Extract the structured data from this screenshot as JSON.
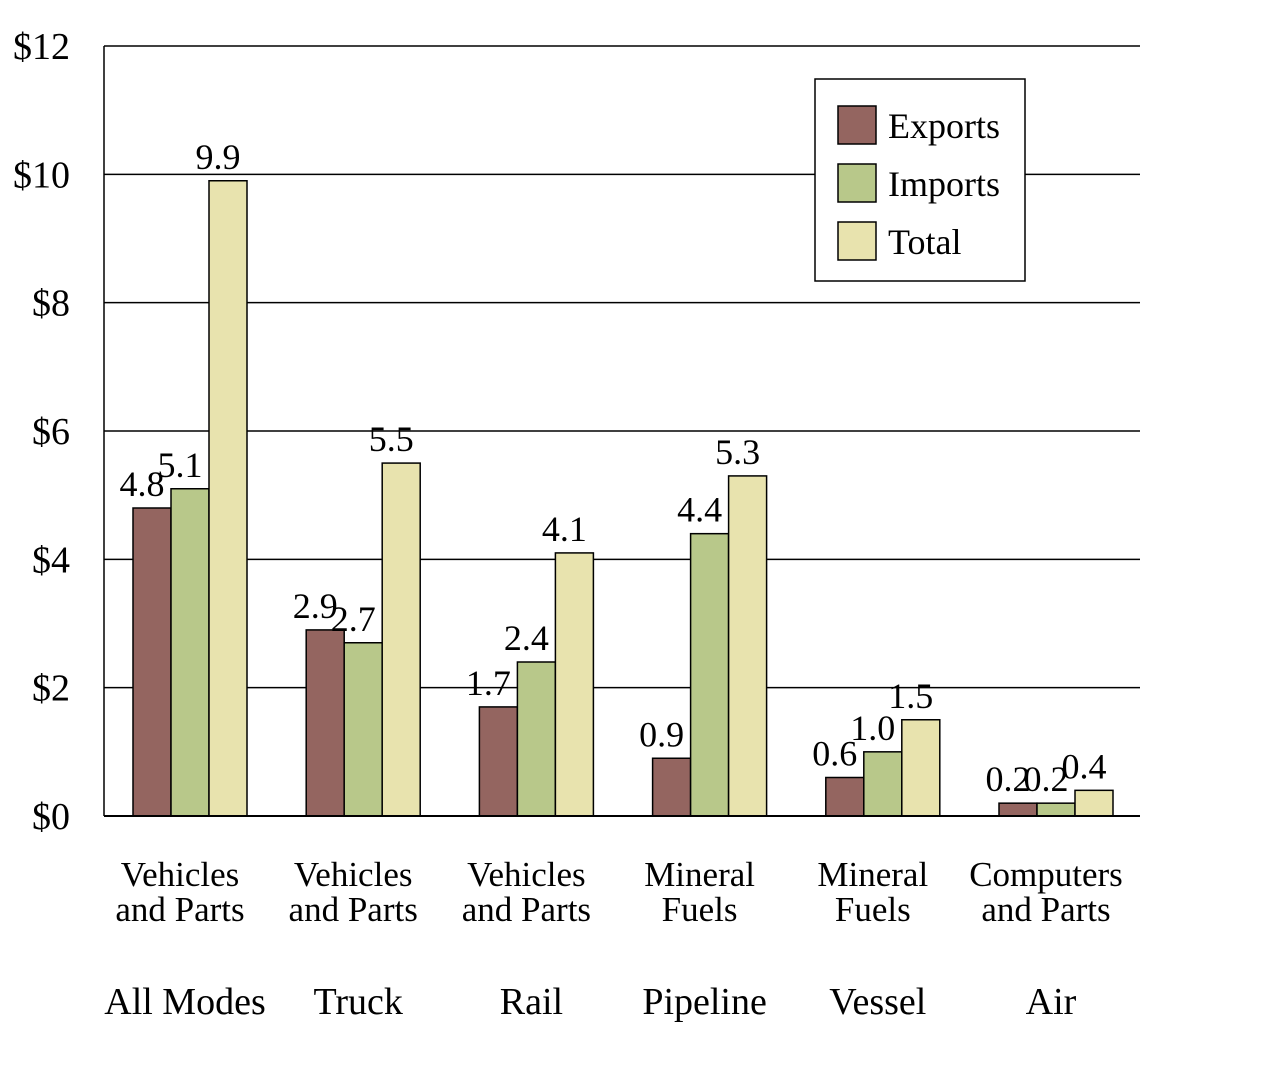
{
  "chart_data": {
    "type": "bar",
    "title": "",
    "xlabel": "",
    "ylabel": "",
    "ylim": [
      0,
      12
    ],
    "y_ticks": [
      {
        "value": 0,
        "label": "$0"
      },
      {
        "value": 2,
        "label": "$2"
      },
      {
        "value": 4,
        "label": "$4"
      },
      {
        "value": 6,
        "label": "$6"
      },
      {
        "value": 8,
        "label": "$8"
      },
      {
        "value": 10,
        "label": "$10"
      },
      {
        "value": 12,
        "label": "$12"
      }
    ],
    "grid": true,
    "legend_position": "top-right",
    "categories": [
      {
        "commodity_lines": [
          "Vehicles",
          "and Parts"
        ],
        "mode": "All Modes"
      },
      {
        "commodity_lines": [
          "Vehicles",
          "and Parts"
        ],
        "mode": "Truck"
      },
      {
        "commodity_lines": [
          "Vehicles",
          "and Parts"
        ],
        "mode": "Rail"
      },
      {
        "commodity_lines": [
          "Mineral",
          "Fuels"
        ],
        "mode": "Pipeline"
      },
      {
        "commodity_lines": [
          "Mineral",
          "Fuels"
        ],
        "mode": "Vessel"
      },
      {
        "commodity_lines": [
          "Computers",
          "and Parts"
        ],
        "mode": "Air"
      }
    ],
    "series": [
      {
        "name": "Exports",
        "color": "#946560",
        "values": [
          4.8,
          2.9,
          1.7,
          0.9,
          0.6,
          0.2
        ],
        "labels": [
          "4.8",
          "2.9",
          "1.7",
          "0.9",
          "0.6",
          "0.2"
        ]
      },
      {
        "name": "Imports",
        "color": "#b8c88a",
        "values": [
          5.1,
          2.7,
          2.4,
          4.4,
          1.0,
          0.2
        ],
        "labels": [
          "5.1",
          "2.7",
          "2.4",
          "4.4",
          "1.0",
          "0.2"
        ]
      },
      {
        "name": "Total",
        "color": "#e8e3ae",
        "values": [
          9.9,
          5.5,
          4.1,
          5.3,
          1.5,
          0.4
        ],
        "labels": [
          "9.9",
          "5.5",
          "4.1",
          "5.3",
          "1.5",
          "0.4"
        ]
      }
    ]
  }
}
